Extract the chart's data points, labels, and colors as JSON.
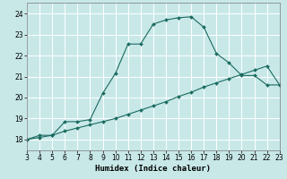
{
  "xlabel": "Humidex (Indice chaleur)",
  "ylabel": "",
  "bg_color": "#c8e8e8",
  "grid_color": "#ffffff",
  "line_color": "#1a6b60",
  "x_min": 3,
  "x_max": 23,
  "y_min": 17.5,
  "y_max": 24.5,
  "yticks": [
    18,
    19,
    20,
    21,
    22,
    23,
    24
  ],
  "xticks": [
    3,
    4,
    5,
    6,
    7,
    8,
    9,
    10,
    11,
    12,
    13,
    14,
    15,
    16,
    17,
    18,
    19,
    20,
    21,
    22,
    23
  ],
  "curve1_x": [
    3,
    4,
    5,
    6,
    7,
    8,
    9,
    10,
    11,
    12,
    13,
    14,
    15,
    16,
    17,
    18,
    19,
    20,
    21,
    22,
    23
  ],
  "curve1_y": [
    18.0,
    18.2,
    18.2,
    18.85,
    18.85,
    18.95,
    20.2,
    21.15,
    22.55,
    22.55,
    23.5,
    23.7,
    23.8,
    23.85,
    23.35,
    22.1,
    21.65,
    21.05,
    21.05,
    20.6,
    20.6
  ],
  "curve2_x": [
    3,
    4,
    5,
    6,
    7,
    8,
    9,
    10,
    11,
    12,
    13,
    14,
    15,
    16,
    17,
    18,
    19,
    20,
    21,
    22,
    23
  ],
  "curve2_y": [
    18.0,
    18.1,
    18.2,
    18.4,
    18.55,
    18.7,
    18.85,
    19.0,
    19.2,
    19.4,
    19.6,
    19.8,
    20.05,
    20.25,
    20.5,
    20.7,
    20.9,
    21.1,
    21.3,
    21.5,
    20.6
  ],
  "marker": "D",
  "markersize": 2.0,
  "linewidth": 0.8,
  "tick_labelsize": 5.5,
  "xlabel_fontsize": 6.5
}
